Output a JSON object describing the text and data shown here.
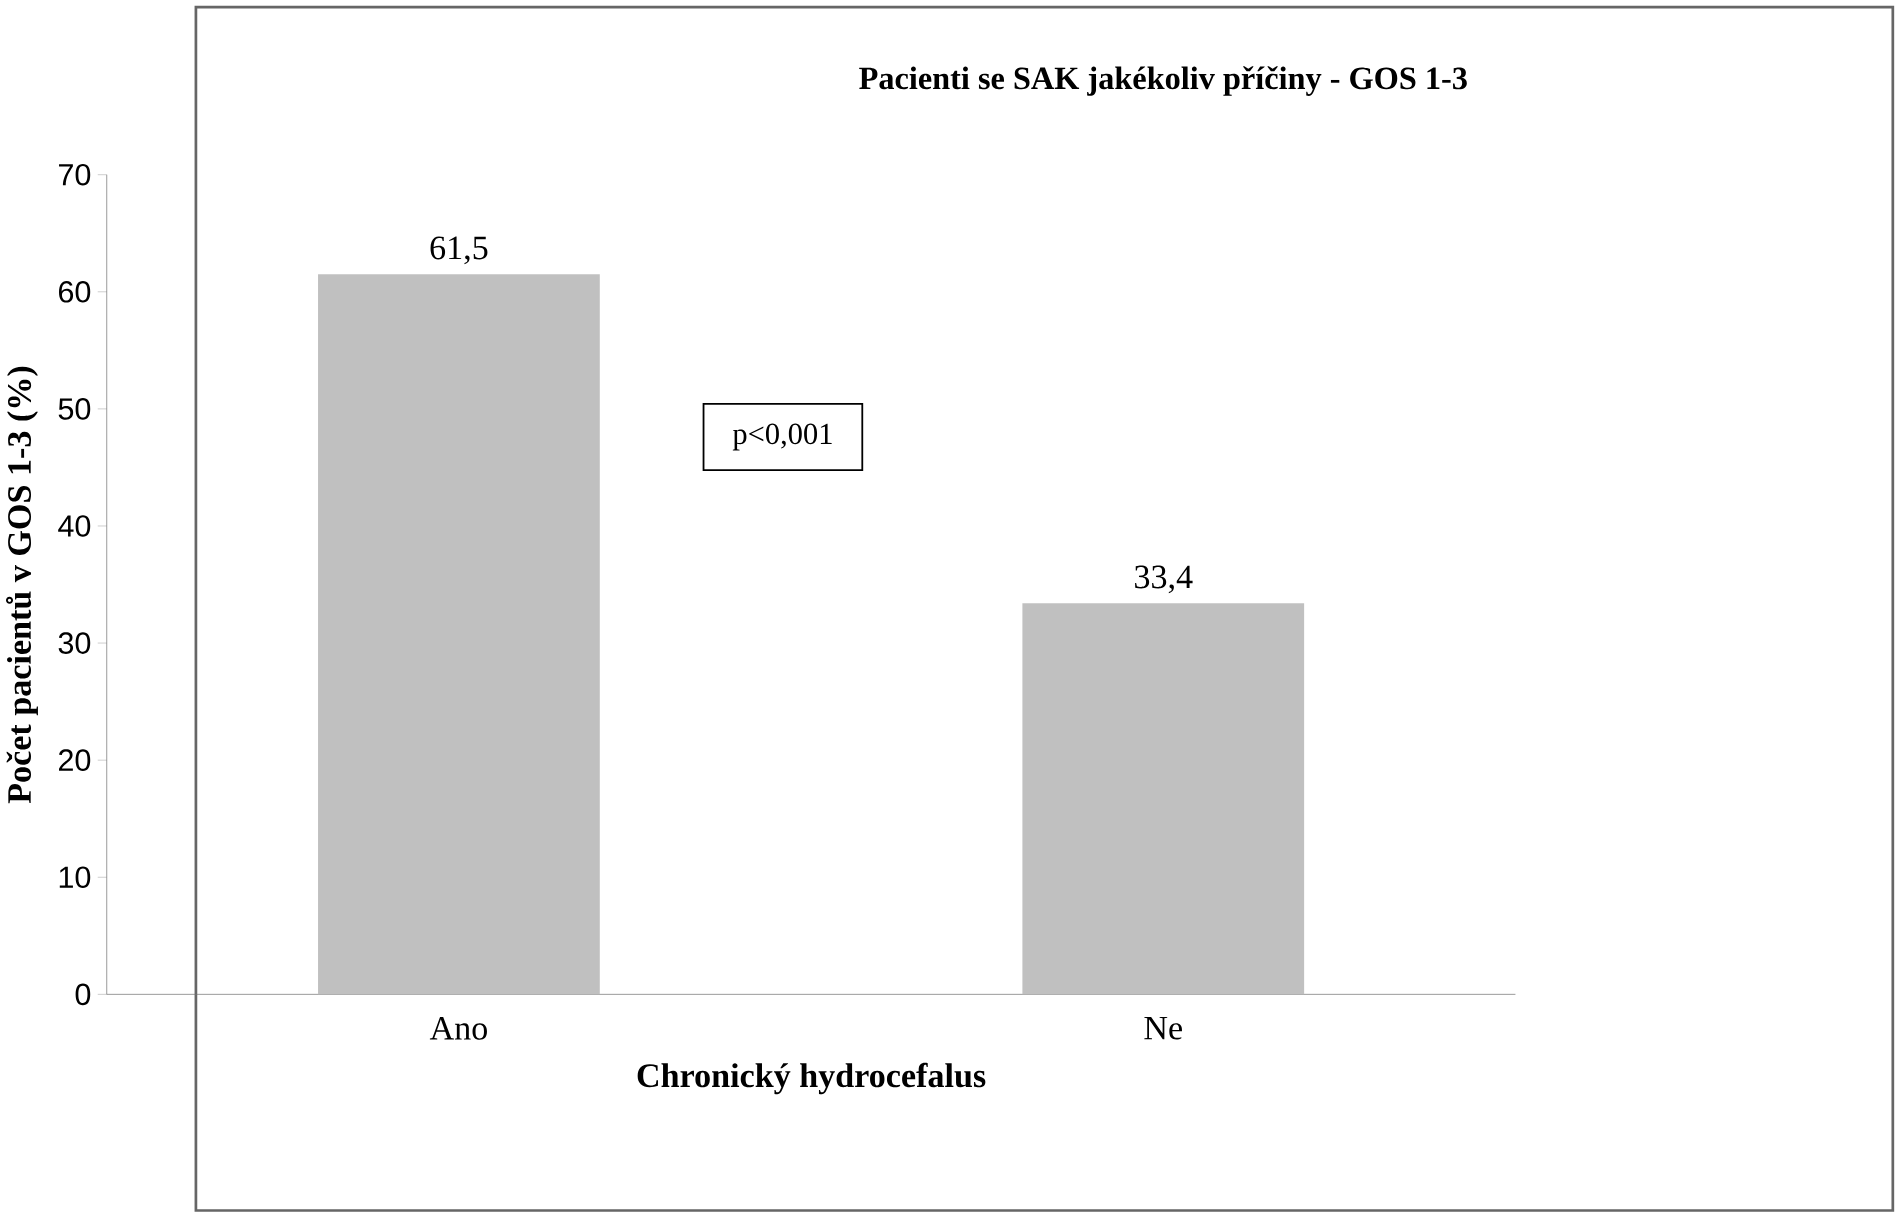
{
  "chart_data": {
    "type": "bar",
    "title": "Pacienti se SAK jakékoliv příčiny - GOS 1-3",
    "xlabel": "Chronický hydrocefalus",
    "ylabel": "Počet pacientů v GOS 1-3 (%)",
    "categories": [
      "Ano",
      "Ne"
    ],
    "values": [
      61.5,
      33.4
    ],
    "value_labels": [
      "61,5",
      "33,4"
    ],
    "color": "#c0c0c0",
    "ylim": [
      0,
      70
    ],
    "yticks": [
      0,
      10,
      20,
      30,
      40,
      50,
      60,
      70
    ],
    "annotations": [
      "p<0,001"
    ]
  }
}
